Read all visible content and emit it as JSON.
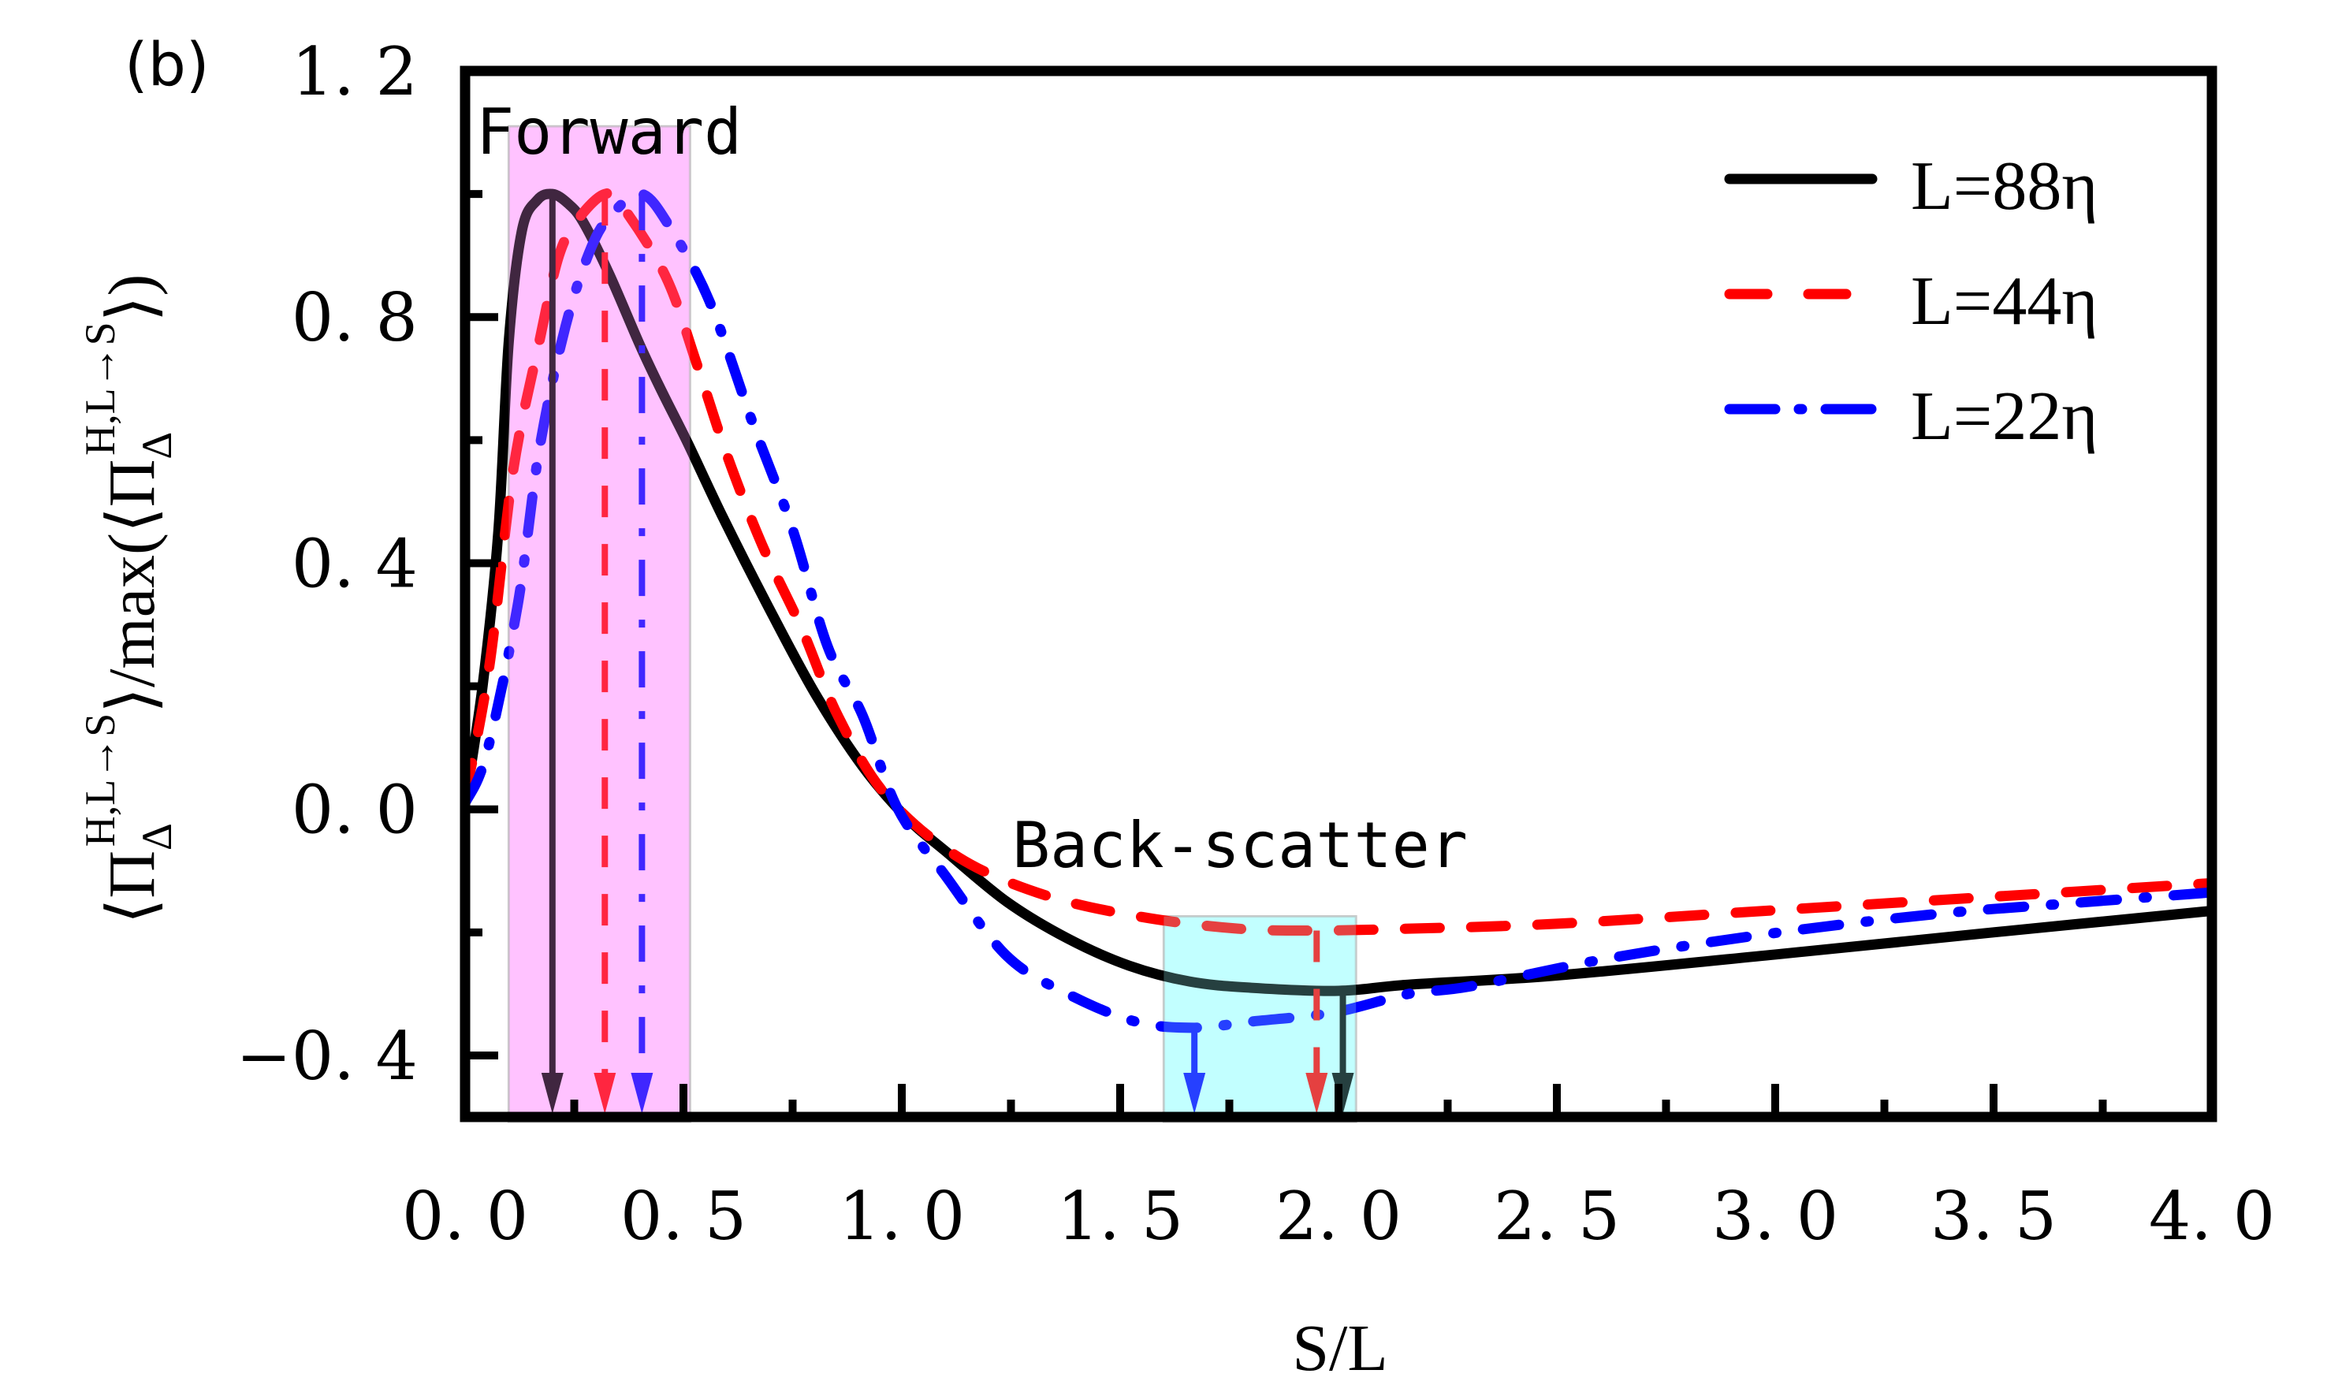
{
  "chart_data": {
    "type": "line",
    "panel_label": "(b)",
    "title": "",
    "xlabel": "S/L",
    "ylabel": {
      "prefix": "⟨Π",
      "sub": "Δ",
      "sup": "H,L→S",
      "middle": "⟩/max(⟨Π",
      "sub2": "Δ",
      "sup2": "H,L→S",
      "suffix": "⟩)"
    },
    "xlim": [
      0,
      4.0
    ],
    "ylim": [
      -0.5,
      1.2
    ],
    "xticks": [
      0.0,
      0.5,
      1.0,
      1.5,
      2.0,
      2.5,
      3.0,
      3.5,
      4.0
    ],
    "xtick_labels": [
      "0. 0",
      "0. 5",
      "1. 0",
      "1. 5",
      "2. 0",
      "2. 5",
      "3. 0",
      "3. 5",
      "4. 0"
    ],
    "xminor": [
      0.25,
      0.75,
      1.25,
      1.75,
      2.25,
      2.75,
      3.25,
      3.75
    ],
    "yticks": [
      1.2,
      0.8,
      0.4,
      0.0,
      -0.4
    ],
    "ytick_labels": [
      "1. 2",
      "0. 8",
      "0. 4",
      "0. 0",
      "−0. 4"
    ],
    "yminor": [
      1.0,
      0.6,
      0.2,
      -0.2
    ],
    "grid": false,
    "legend": {
      "placement": "top-right",
      "entries": [
        {
          "label": "L=88η",
          "series": 0
        },
        {
          "label": "L=44η",
          "series": 1
        },
        {
          "label": "L=22η",
          "series": 2
        }
      ]
    },
    "series": [
      {
        "name": "L=88η",
        "color": "#000000",
        "style": "solid",
        "x": [
          0.0,
          0.04,
          0.076,
          0.1,
          0.13,
          0.165,
          0.2,
          0.235,
          0.27,
          0.33,
          0.4,
          0.45,
          0.51,
          0.59,
          0.69,
          0.8,
          0.91,
          1.01,
          1.1,
          1.24,
          1.38,
          1.52,
          1.66,
          1.8,
          2.0,
          2.16,
          2.5,
          3.0,
          3.5,
          4.0
        ],
        "y": [
          0.01,
          0.2,
          0.45,
          0.76,
          0.94,
          0.99,
          1.0,
          0.985,
          0.955,
          0.87,
          0.755,
          0.68,
          0.595,
          0.475,
          0.335,
          0.19,
          0.07,
          -0.013,
          -0.068,
          -0.15,
          -0.21,
          -0.254,
          -0.28,
          -0.29,
          -0.295,
          -0.285,
          -0.27,
          -0.236,
          -0.2,
          -0.165
        ]
      },
      {
        "name": "L=44η",
        "color": "#ff0000",
        "style": "dashed",
        "x": [
          0.0,
          0.055,
          0.11,
          0.17,
          0.215,
          0.26,
          0.32,
          0.36,
          0.46,
          0.53,
          0.6,
          0.68,
          0.77,
          0.855,
          0.965,
          1.13,
          1.33,
          1.55,
          1.77,
          1.95,
          2.16,
          2.5,
          3.0,
          3.5,
          4.0
        ],
        "y": [
          0.02,
          0.23,
          0.55,
          0.76,
          0.9,
          0.96,
          1.0,
          0.98,
          0.865,
          0.725,
          0.575,
          0.43,
          0.295,
          0.15,
          0.022,
          -0.078,
          -0.14,
          -0.175,
          -0.194,
          -0.197,
          -0.194,
          -0.186,
          -0.164,
          -0.142,
          -0.12
        ]
      },
      {
        "name": "L=22η",
        "color": "#0000ff",
        "style": "dashdot",
        "x": [
          0.0,
          0.049,
          0.12,
          0.17,
          0.23,
          0.29,
          0.34,
          0.405,
          0.47,
          0.56,
          0.66,
          0.75,
          0.83,
          0.91,
          0.99,
          1.1,
          1.24,
          1.38,
          1.535,
          1.67,
          1.8,
          1.99,
          2.16,
          2.3,
          2.59,
          2.85,
          3.12,
          3.4,
          3.67,
          4.0
        ],
        "y": [
          0.01,
          0.09,
          0.33,
          0.585,
          0.785,
          0.915,
          0.97,
          1.0,
          0.945,
          0.825,
          0.625,
          0.455,
          0.265,
          0.153,
          0.002,
          -0.108,
          -0.238,
          -0.3,
          -0.345,
          -0.355,
          -0.345,
          -0.33,
          -0.3,
          -0.288,
          -0.246,
          -0.216,
          -0.19,
          -0.168,
          -0.153,
          -0.135
        ]
      }
    ],
    "regions": [
      {
        "name": "forward-region",
        "label": "Forward",
        "x_range": [
          0.1,
          0.515
        ],
        "y_range": [
          -0.5,
          1.11
        ],
        "color": "#ff99ff"
      },
      {
        "name": "backscatter-region",
        "label": "Back-scatter",
        "x_range": [
          1.6,
          2.04
        ],
        "y_range": [
          -0.5,
          -0.174
        ],
        "color": "#99ffff"
      }
    ],
    "arrows": [
      {
        "series": 0,
        "x": 0.2,
        "from_y": 1.0,
        "style": "solid",
        "color": "#000000"
      },
      {
        "series": 1,
        "x": 0.32,
        "from_y": 1.0,
        "style": "dashed",
        "color": "#ff0000"
      },
      {
        "series": 2,
        "x": 0.405,
        "from_y": 1.0,
        "style": "dashdot",
        "color": "#0000ff"
      },
      {
        "series": 2,
        "x": 1.67,
        "from_y": -0.355,
        "style": "solid",
        "color": "#0000ff"
      },
      {
        "series": 1,
        "x": 1.95,
        "from_y": -0.197,
        "style": "dashed",
        "color": "#ff0000"
      },
      {
        "series": 0,
        "x": 2.01,
        "from_y": -0.295,
        "style": "solid",
        "color": "#000000"
      }
    ],
    "annotations": [
      {
        "text": "Forward",
        "near": "top-left of forward region"
      },
      {
        "text": "Back-scatter",
        "near": "above backscatter region"
      }
    ]
  }
}
